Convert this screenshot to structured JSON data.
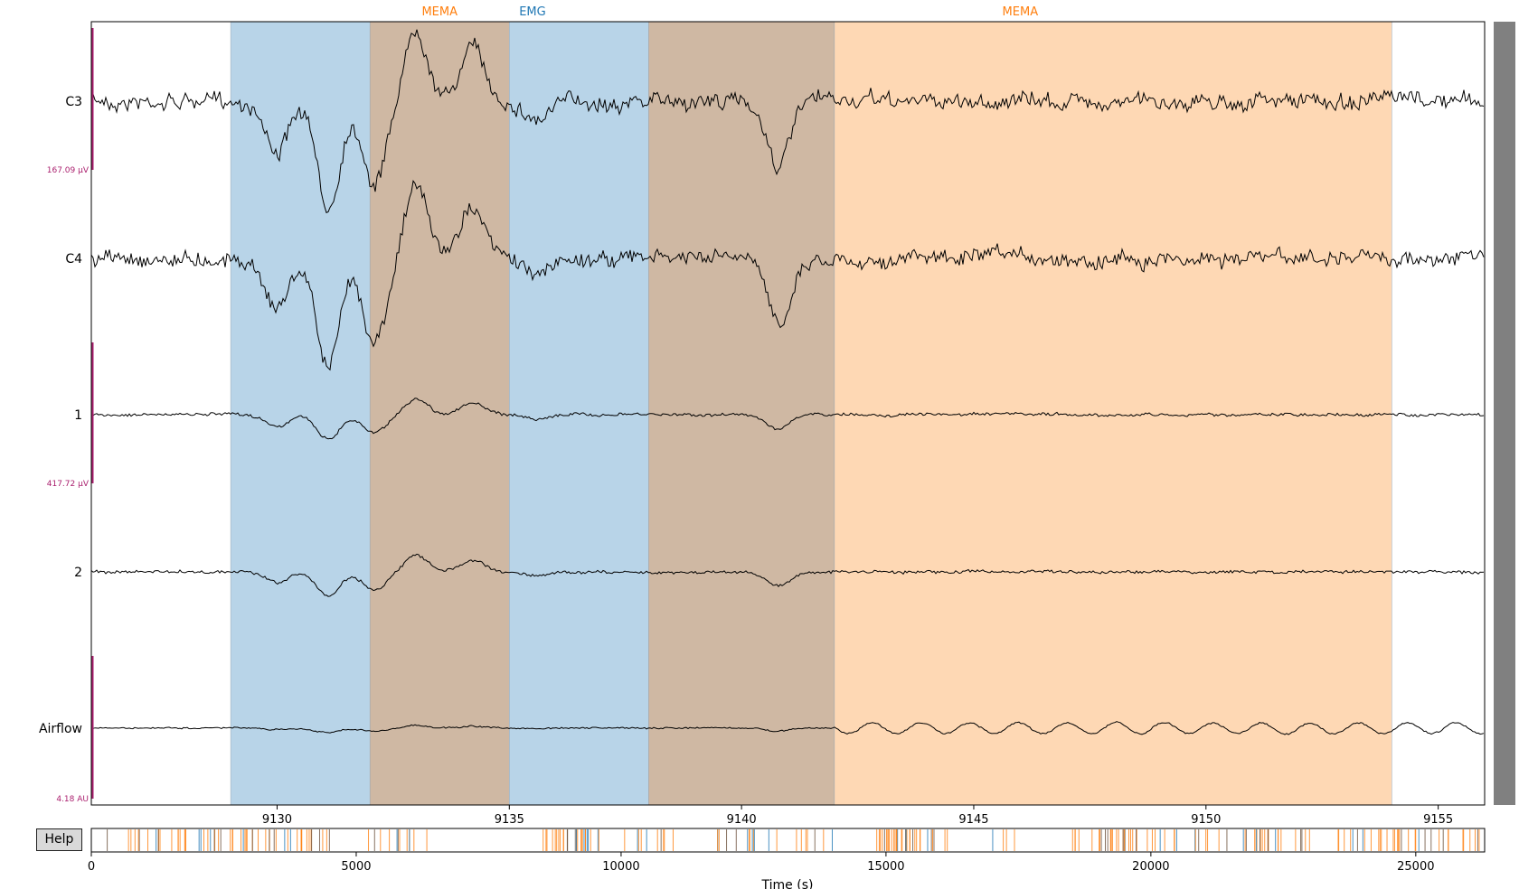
{
  "ui": {
    "help_label": "Help",
    "xlabel": "Time (s)"
  },
  "chart_data": [
    {
      "type": "line",
      "title": "",
      "xlim": [
        9126,
        9156
      ],
      "x_ticks": [
        9130,
        9135,
        9140,
        9145,
        9150,
        9155
      ],
      "channels": [
        "C3",
        "C4",
        "1",
        "2",
        "Airflow"
      ],
      "scale_bars": [
        {
          "label": "167.09 µV",
          "channels": [
            "C3",
            "C4"
          ]
        },
        {
          "label": "417.72 µV",
          "channels": [
            "1",
            "2"
          ]
        },
        {
          "label": "4.18 AU",
          "channels": [
            "Airflow"
          ]
        }
      ],
      "annotations": [
        {
          "label": "EMG",
          "start": 9129.0,
          "end": 9132.0,
          "color": "#1f77b4"
        },
        {
          "label": "MEMA",
          "start": 9132.0,
          "end": 9135.0,
          "color": "#ff7f0e"
        },
        {
          "label": "EMG",
          "start": 9132.0,
          "end": 9135.0,
          "color": "#1f77b4"
        },
        {
          "label": "EMG",
          "start": 9135.0,
          "end": 9138.0,
          "color": "#1f77b4"
        },
        {
          "label": "MEMA",
          "start": 9138.0,
          "end": 9142.0,
          "color": "#ff7f0e"
        },
        {
          "label": "EMG",
          "start": 9138.0,
          "end": 9142.0,
          "color": "#1f77b4"
        },
        {
          "label": "MEMA",
          "start": 9142.0,
          "end": 9154.0,
          "color": "#ff7f0e"
        }
      ],
      "annotation_header": [
        {
          "label": "MEMA",
          "x": 9133.5,
          "color": "#ff7f0e"
        },
        {
          "label": "EMG",
          "x": 9135.5,
          "color": "#1f77b4"
        },
        {
          "label": "MEMA",
          "x": 9146.0,
          "color": "#ff7f0e"
        }
      ],
      "trace_color": "#000000",
      "scalebar_color": "#aa1f6e"
    },
    {
      "type": "bar",
      "title": "",
      "xlabel": "Time (s)",
      "xlim": [
        0,
        26300
      ],
      "x_ticks": [
        0,
        5000,
        10000,
        15000,
        20000,
        25000
      ],
      "colors": {
        "MEMA": "#ff7f0e",
        "EMG": "#1f77b4",
        "overlap": "#6b4f3a"
      }
    }
  ]
}
